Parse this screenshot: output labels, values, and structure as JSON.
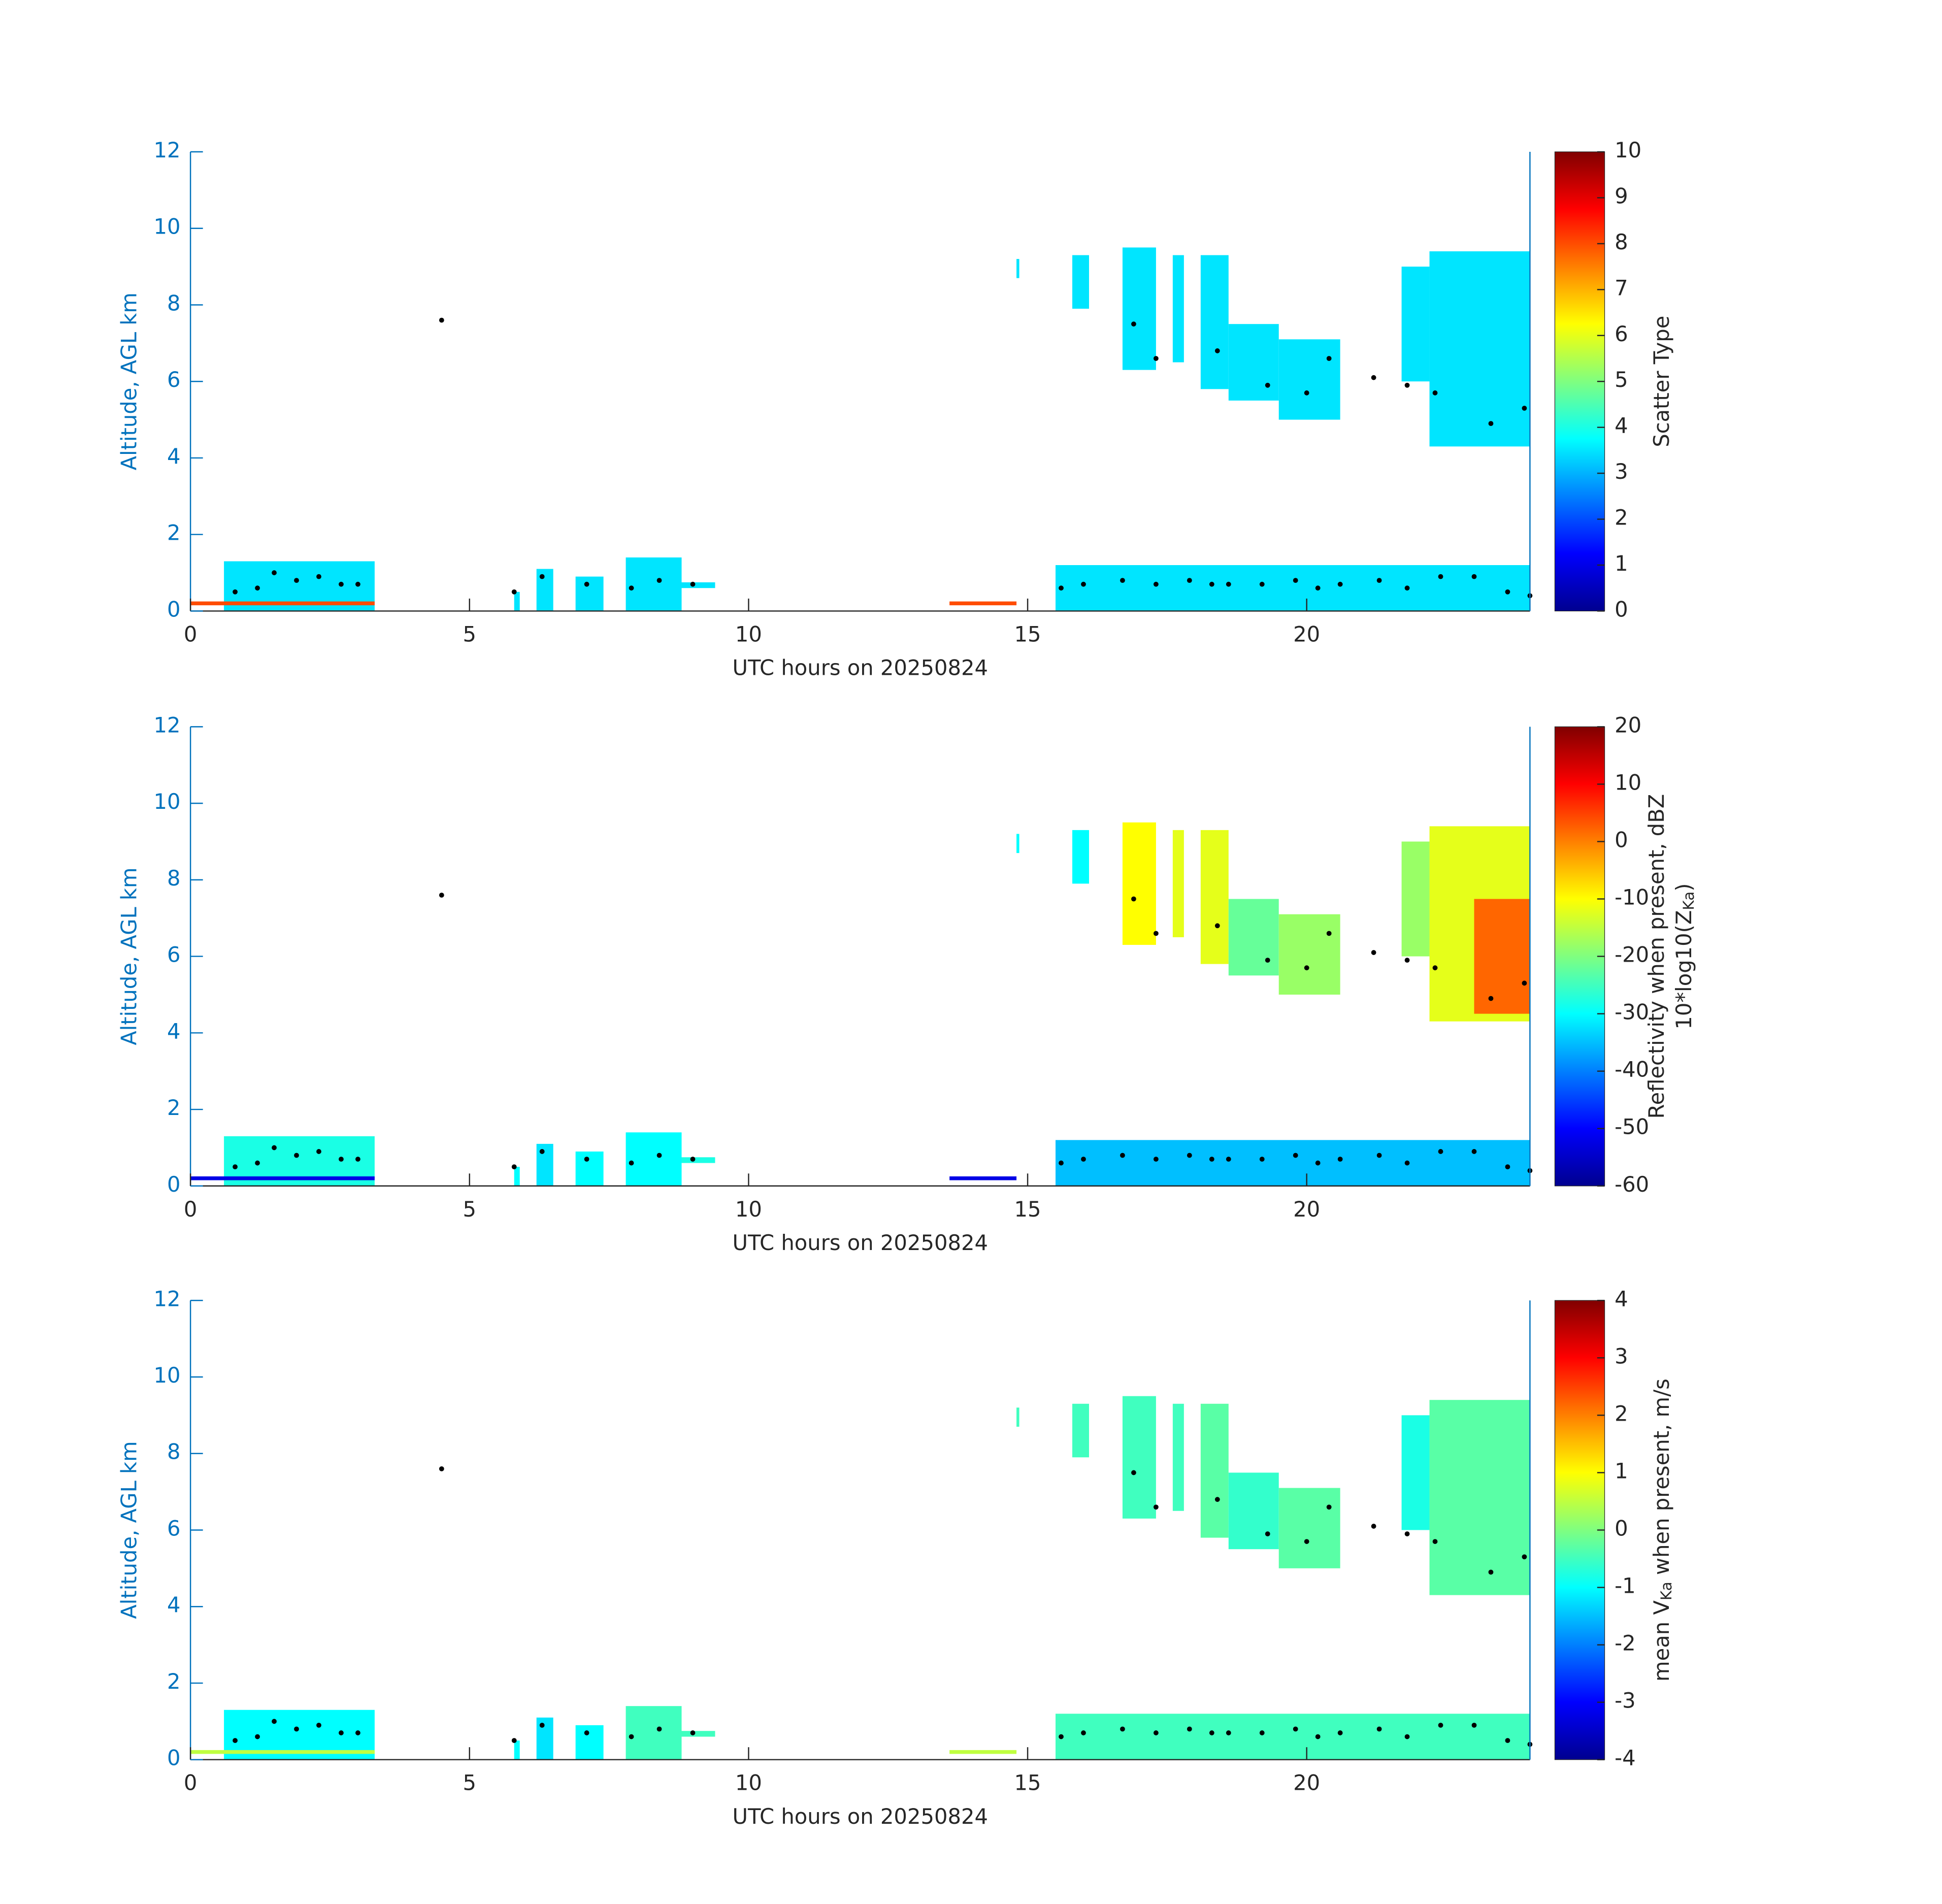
{
  "chart_data": [
    {
      "type": "heatmap",
      "xlabel": "UTC hours on 20250824",
      "ylabel": "Altitude, AGL km",
      "colorbar_label": [
        [
          {
            "text": "Scatter Type"
          }
        ]
      ],
      "xlim": [
        0,
        24
      ],
      "xticks": [
        0,
        5,
        10,
        15,
        20
      ],
      "ylim": [
        0,
        12
      ],
      "yticks": [
        0,
        2,
        4,
        6,
        8,
        10,
        12
      ],
      "clim": [
        0,
        10
      ],
      "cticks": [
        0,
        1,
        2,
        3,
        4,
        5,
        6,
        7,
        8,
        9,
        10
      ],
      "regions": [
        [
          0.6,
          3.3,
          0,
          1.3,
          3.5
        ],
        [
          0,
          3.3,
          0.15,
          0.25,
          8
        ],
        [
          5.8,
          5.9,
          0,
          0.5,
          3.5
        ],
        [
          6.2,
          6.5,
          0,
          1.1,
          3.5
        ],
        [
          6.9,
          7.4,
          0,
          0.9,
          3.5
        ],
        [
          7.8,
          8.8,
          0,
          1.4,
          3.5
        ],
        [
          8.8,
          9.4,
          0.6,
          0.75,
          3.5
        ],
        [
          13.6,
          14.8,
          0.15,
          0.25,
          8
        ],
        [
          15.5,
          24,
          0,
          1.2,
          3.5
        ],
        [
          16.7,
          17.3,
          6.3,
          9.5,
          3.5
        ],
        [
          17.6,
          17.8,
          6.5,
          9.3,
          3.5
        ],
        [
          18.1,
          18.6,
          5.8,
          9.3,
          3.5
        ],
        [
          18.6,
          19.5,
          5.5,
          7.5,
          3.5
        ],
        [
          19.5,
          20.6,
          5,
          7.1,
          3.5
        ],
        [
          21.7,
          22.2,
          6,
          9,
          3.5
        ],
        [
          22.2,
          24,
          4.3,
          9.4,
          3.5
        ],
        [
          14.8,
          14.85,
          8.7,
          9.2,
          3.5
        ],
        [
          15.8,
          16.1,
          7.9,
          9.3,
          3.5
        ]
      ],
      "points_x": [
        0.8,
        1.2,
        1.5,
        1.9,
        2.3,
        2.7,
        3.0,
        4.5,
        5.8,
        6.3,
        7.1,
        7.9,
        8.4,
        9.0,
        15.6,
        16.0,
        16.7,
        17.3,
        17.9,
        18.3,
        18.6,
        19.2,
        19.8,
        20.2,
        20.6,
        21.3,
        21.8,
        22.4,
        23.0,
        23.6,
        24.0,
        16.9,
        17.3,
        18.4,
        19.3,
        20.0,
        20.4,
        21.2,
        21.8,
        22.3,
        23.3,
        23.9
      ],
      "points_y": [
        0.5,
        0.6,
        1.0,
        0.8,
        0.9,
        0.7,
        0.7,
        7.6,
        0.5,
        0.9,
        0.7,
        0.6,
        0.8,
        0.7,
        0.6,
        0.7,
        0.8,
        0.7,
        0.8,
        0.7,
        0.7,
        0.7,
        0.8,
        0.6,
        0.7,
        0.8,
        0.6,
        0.9,
        0.9,
        0.5,
        0.4,
        7.5,
        6.6,
        6.8,
        5.9,
        5.7,
        6.6,
        6.1,
        5.9,
        5.7,
        4.9,
        5.3
      ]
    },
    {
      "type": "heatmap",
      "xlabel": "UTC hours on 20250824",
      "ylabel": "Altitude, AGL km",
      "colorbar_label": [
        [
          {
            "text": "Reflectivity when present, dBZ"
          }
        ],
        [
          {
            "text": "10*log10(Z"
          },
          {
            "text": "Ka",
            "sub": true
          },
          {
            "text": ")"
          }
        ]
      ],
      "xlim": [
        0,
        24
      ],
      "xticks": [
        0,
        5,
        10,
        15,
        20
      ],
      "ylim": [
        0,
        12
      ],
      "yticks": [
        0,
        2,
        4,
        6,
        8,
        10,
        12
      ],
      "clim": [
        -60,
        20
      ],
      "cticks": [
        -60,
        -50,
        -40,
        -30,
        -20,
        -10,
        0,
        10,
        20
      ],
      "regions": [
        [
          0.6,
          3.3,
          0,
          1.3,
          -28
        ],
        [
          0,
          3.3,
          0.15,
          0.25,
          -52
        ],
        [
          5.8,
          5.9,
          0,
          0.5,
          -30
        ],
        [
          6.2,
          6.5,
          0,
          1.1,
          -32
        ],
        [
          6.9,
          7.4,
          0,
          0.9,
          -30
        ],
        [
          7.8,
          8.8,
          0,
          1.4,
          -30
        ],
        [
          8.8,
          9.4,
          0.6,
          0.75,
          -28
        ],
        [
          13.6,
          14.8,
          0.15,
          0.25,
          -52
        ],
        [
          15.5,
          24,
          0,
          1.2,
          -35
        ],
        [
          16.7,
          17.3,
          6.3,
          9.5,
          -10
        ],
        [
          17.6,
          17.8,
          6.5,
          9.3,
          -12
        ],
        [
          18.1,
          18.6,
          5.8,
          9.3,
          -12
        ],
        [
          18.6,
          19.5,
          5.5,
          7.5,
          -22
        ],
        [
          19.5,
          20.6,
          5,
          7.1,
          -18
        ],
        [
          21.7,
          22.2,
          6,
          9,
          -18
        ],
        [
          22.2,
          24,
          4.3,
          9.4,
          -12
        ],
        [
          23.0,
          24,
          4.5,
          7.5,
          2
        ],
        [
          14.8,
          14.85,
          8.7,
          9.2,
          -30
        ],
        [
          15.8,
          16.1,
          7.9,
          9.3,
          -30
        ]
      ],
      "points_x": [
        0.8,
        1.2,
        1.5,
        1.9,
        2.3,
        2.7,
        3.0,
        4.5,
        5.8,
        6.3,
        7.1,
        7.9,
        8.4,
        9.0,
        15.6,
        16.0,
        16.7,
        17.3,
        17.9,
        18.3,
        18.6,
        19.2,
        19.8,
        20.2,
        20.6,
        21.3,
        21.8,
        22.4,
        23.0,
        23.6,
        24.0,
        16.9,
        17.3,
        18.4,
        19.3,
        20.0,
        20.4,
        21.2,
        21.8,
        22.3,
        23.3,
        23.9
      ],
      "points_y": [
        0.5,
        0.6,
        1.0,
        0.8,
        0.9,
        0.7,
        0.7,
        7.6,
        0.5,
        0.9,
        0.7,
        0.6,
        0.8,
        0.7,
        0.6,
        0.7,
        0.8,
        0.7,
        0.8,
        0.7,
        0.7,
        0.7,
        0.8,
        0.6,
        0.7,
        0.8,
        0.6,
        0.9,
        0.9,
        0.5,
        0.4,
        7.5,
        6.6,
        6.8,
        5.9,
        5.7,
        6.6,
        6.1,
        5.9,
        5.7,
        4.9,
        5.3
      ]
    },
    {
      "type": "heatmap",
      "xlabel": "UTC hours on 20250824",
      "ylabel": "Altitude, AGL km",
      "colorbar_label": [
        [
          {
            "text": "mean V"
          },
          {
            "text": "Ka",
            "sub": true
          },
          {
            "text": " when present, m/s"
          }
        ]
      ],
      "xlim": [
        0,
        24
      ],
      "xticks": [
        0,
        5,
        10,
        15,
        20
      ],
      "ylim": [
        0,
        12
      ],
      "yticks": [
        0,
        2,
        4,
        6,
        8,
        10,
        12
      ],
      "clim": [
        -4,
        4
      ],
      "cticks": [
        -4,
        -3,
        -2,
        -1,
        0,
        1,
        2,
        3,
        4
      ],
      "regions": [
        [
          0.6,
          3.3,
          0,
          1.3,
          -1
        ],
        [
          0,
          3.3,
          0.15,
          0.25,
          0.5
        ],
        [
          5.8,
          5.9,
          0,
          0.5,
          -1
        ],
        [
          6.2,
          6.5,
          0,
          1.1,
          -1.2
        ],
        [
          6.9,
          7.4,
          0,
          0.9,
          -1
        ],
        [
          7.8,
          8.8,
          0,
          1.4,
          -0.5
        ],
        [
          8.8,
          9.4,
          0.6,
          0.75,
          -0.5
        ],
        [
          13.6,
          14.8,
          0.15,
          0.25,
          0.5
        ],
        [
          15.5,
          24,
          0,
          1.2,
          -0.5
        ],
        [
          16.7,
          17.3,
          6.3,
          9.5,
          -0.5
        ],
        [
          17.6,
          17.8,
          6.5,
          9.3,
          -0.5
        ],
        [
          18.1,
          18.6,
          5.8,
          9.3,
          -0.3
        ],
        [
          18.6,
          19.5,
          5.5,
          7.5,
          -0.6
        ],
        [
          19.5,
          20.6,
          5,
          7.1,
          -0.3
        ],
        [
          21.7,
          22.2,
          6,
          9,
          -0.8
        ],
        [
          22.2,
          24,
          4.3,
          9.4,
          -0.3
        ],
        [
          14.8,
          14.85,
          8.7,
          9.2,
          -0.5
        ],
        [
          15.8,
          16.1,
          7.9,
          9.3,
          -0.5
        ]
      ],
      "points_x": [
        0.8,
        1.2,
        1.5,
        1.9,
        2.3,
        2.7,
        3.0,
        4.5,
        5.8,
        6.3,
        7.1,
        7.9,
        8.4,
        9.0,
        15.6,
        16.0,
        16.7,
        17.3,
        17.9,
        18.3,
        18.6,
        19.2,
        19.8,
        20.2,
        20.6,
        21.3,
        21.8,
        22.4,
        23.0,
        23.6,
        24.0,
        16.9,
        17.3,
        18.4,
        19.3,
        20.0,
        20.4,
        21.2,
        21.8,
        22.3,
        23.3,
        23.9
      ],
      "points_y": [
        0.5,
        0.6,
        1.0,
        0.8,
        0.9,
        0.7,
        0.7,
        7.6,
        0.5,
        0.9,
        0.7,
        0.6,
        0.8,
        0.7,
        0.6,
        0.7,
        0.8,
        0.7,
        0.8,
        0.7,
        0.7,
        0.7,
        0.8,
        0.6,
        0.7,
        0.8,
        0.6,
        0.9,
        0.9,
        0.5,
        0.4,
        7.5,
        6.6,
        6.8,
        5.9,
        5.7,
        6.6,
        6.1,
        5.9,
        5.7,
        4.9,
        5.3
      ]
    }
  ]
}
